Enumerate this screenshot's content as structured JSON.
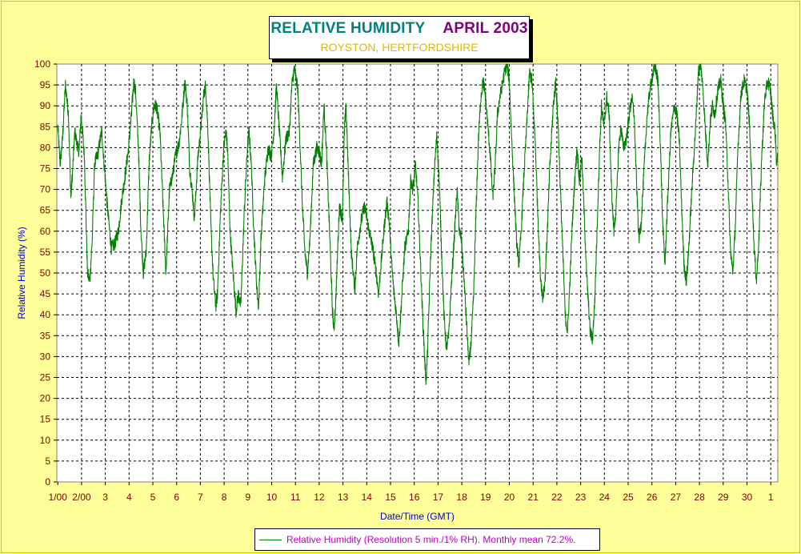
{
  "chart_data": {
    "type": "line",
    "title_left": "RELATIVE HUMIDITY",
    "title_right": "APRIL 2003",
    "subtitle": "ROYSTON, HERTFORDSHIRE",
    "xlabel": "Date/Time (GMT)",
    "ylabel": "Relative Humidity (%)",
    "ylim": [
      0,
      100
    ],
    "yticks": [
      0,
      5,
      10,
      15,
      20,
      25,
      30,
      35,
      40,
      45,
      50,
      55,
      60,
      65,
      70,
      75,
      80,
      85,
      90,
      95,
      100
    ],
    "xlim": [
      1.0,
      31.3
    ],
    "xtick_labels": [
      "1/00",
      "2/00",
      "3",
      "4",
      "5",
      "6",
      "7",
      "8",
      "9",
      "10",
      "11",
      "12",
      "13",
      "14",
      "15",
      "16",
      "17",
      "18",
      "19",
      "20",
      "21",
      "22",
      "23",
      "24",
      "25",
      "26",
      "27",
      "28",
      "29",
      "30",
      "1"
    ],
    "grid": true,
    "legend": "Relative Humidity (Resolution 5 min./1% RH). Monthly mean 72.2%.",
    "legend_position": "bottom-center",
    "colors": {
      "series": "#008000",
      "background": "#ffff99",
      "plot": "#ffffff",
      "title_left": "#008080",
      "title_right": "#800080",
      "subtitle": "#e6b800",
      "axis_label": "#0000c0",
      "legend_text": "#c000c0"
    },
    "series": [
      {
        "name": "Relative Humidity",
        "x_unit": "days from 00:00 GMT on 1 April",
        "points": [
          [
            0.0,
            85
          ],
          [
            0.1,
            76
          ],
          [
            0.2,
            82
          ],
          [
            0.32,
            95
          ],
          [
            0.45,
            88
          ],
          [
            0.55,
            68
          ],
          [
            0.62,
            74
          ],
          [
            0.72,
            84
          ],
          [
            0.8,
            81
          ],
          [
            0.9,
            79
          ],
          [
            0.98,
            88
          ],
          [
            1.12,
            78
          ],
          [
            1.25,
            50
          ],
          [
            1.35,
            48
          ],
          [
            1.45,
            58
          ],
          [
            1.55,
            76
          ],
          [
            1.7,
            79
          ],
          [
            1.85,
            84
          ],
          [
            1.95,
            76
          ],
          [
            2.1,
            65
          ],
          [
            2.25,
            56
          ],
          [
            2.4,
            57
          ],
          [
            2.55,
            60
          ],
          [
            2.7,
            68
          ],
          [
            2.85,
            74
          ],
          [
            2.98,
            80
          ],
          [
            3.1,
            88
          ],
          [
            3.2,
            96
          ],
          [
            3.28,
            93
          ],
          [
            3.4,
            79
          ],
          [
            3.5,
            60
          ],
          [
            3.6,
            50
          ],
          [
            3.72,
            55
          ],
          [
            3.85,
            77
          ],
          [
            3.95,
            85
          ],
          [
            4.05,
            90
          ],
          [
            4.15,
            90
          ],
          [
            4.3,
            84
          ],
          [
            4.45,
            63
          ],
          [
            4.55,
            50
          ],
          [
            4.7,
            70
          ],
          [
            4.85,
            74
          ],
          [
            4.95,
            78
          ],
          [
            5.1,
            81
          ],
          [
            5.2,
            86
          ],
          [
            5.35,
            96
          ],
          [
            5.45,
            90
          ],
          [
            5.55,
            75
          ],
          [
            5.65,
            70
          ],
          [
            5.75,
            63
          ],
          [
            5.9,
            78
          ],
          [
            5.98,
            82
          ],
          [
            6.15,
            93
          ],
          [
            6.22,
            95
          ],
          [
            6.32,
            84
          ],
          [
            6.45,
            60
          ],
          [
            6.55,
            48
          ],
          [
            6.65,
            42
          ],
          [
            6.72,
            45
          ],
          [
            6.85,
            65
          ],
          [
            6.98,
            80
          ],
          [
            7.08,
            84
          ],
          [
            7.15,
            79
          ],
          [
            7.25,
            60
          ],
          [
            7.4,
            48
          ],
          [
            7.5,
            41
          ],
          [
            7.6,
            45
          ],
          [
            7.7,
            42
          ],
          [
            7.85,
            65
          ],
          [
            7.98,
            80
          ],
          [
            8.05,
            84
          ],
          [
            8.15,
            75
          ],
          [
            8.25,
            60
          ],
          [
            8.38,
            46
          ],
          [
            8.45,
            42
          ],
          [
            8.55,
            58
          ],
          [
            8.7,
            72
          ],
          [
            8.85,
            80
          ],
          [
            8.98,
            78
          ],
          [
            9.1,
            84
          ],
          [
            9.2,
            95
          ],
          [
            9.3,
            86
          ],
          [
            9.45,
            73
          ],
          [
            9.6,
            82
          ],
          [
            9.75,
            84
          ],
          [
            9.85,
            95
          ],
          [
            9.95,
            99
          ],
          [
            10.1,
            94
          ],
          [
            10.2,
            80
          ],
          [
            10.3,
            65
          ],
          [
            10.4,
            55
          ],
          [
            10.5,
            50
          ],
          [
            10.6,
            57
          ],
          [
            10.75,
            76
          ],
          [
            10.9,
            80
          ],
          [
            11.0,
            79
          ],
          [
            11.1,
            76
          ],
          [
            11.2,
            90
          ],
          [
            11.3,
            80
          ],
          [
            11.45,
            58
          ],
          [
            11.55,
            42
          ],
          [
            11.62,
            36
          ],
          [
            11.7,
            44
          ],
          [
            11.85,
            66
          ],
          [
            11.98,
            63
          ],
          [
            12.05,
            82
          ],
          [
            12.12,
            91
          ],
          [
            12.22,
            75
          ],
          [
            12.35,
            55
          ],
          [
            12.5,
            46
          ],
          [
            12.6,
            56
          ],
          [
            12.75,
            62
          ],
          [
            12.9,
            66
          ],
          [
            12.98,
            64
          ],
          [
            13.1,
            60
          ],
          [
            13.25,
            56
          ],
          [
            13.4,
            50
          ],
          [
            13.5,
            45
          ],
          [
            13.6,
            52
          ],
          [
            13.75,
            62
          ],
          [
            13.85,
            67
          ],
          [
            13.95,
            62
          ],
          [
            14.05,
            52
          ],
          [
            14.15,
            45
          ],
          [
            14.25,
            40
          ],
          [
            14.35,
            33
          ],
          [
            14.45,
            42
          ],
          [
            14.6,
            56
          ],
          [
            14.75,
            60
          ],
          [
            14.85,
            72
          ],
          [
            14.95,
            70
          ],
          [
            15.05,
            76
          ],
          [
            15.15,
            68
          ],
          [
            15.25,
            54
          ],
          [
            15.35,
            40
          ],
          [
            15.45,
            28
          ],
          [
            15.5,
            24
          ],
          [
            15.55,
            30
          ],
          [
            15.7,
            56
          ],
          [
            15.85,
            75
          ],
          [
            15.95,
            83
          ],
          [
            16.05,
            72
          ],
          [
            16.15,
            55
          ],
          [
            16.25,
            40
          ],
          [
            16.35,
            32
          ],
          [
            16.45,
            35
          ],
          [
            16.55,
            46
          ],
          [
            16.7,
            60
          ],
          [
            16.8,
            70
          ],
          [
            16.9,
            60
          ],
          [
            16.98,
            58
          ],
          [
            17.1,
            48
          ],
          [
            17.2,
            38
          ],
          [
            17.3,
            28
          ],
          [
            17.4,
            34
          ],
          [
            17.5,
            45
          ],
          [
            17.6,
            65
          ],
          [
            17.7,
            82
          ],
          [
            17.8,
            92
          ],
          [
            17.9,
            96
          ],
          [
            18.0,
            92
          ],
          [
            18.1,
            85
          ],
          [
            18.2,
            78
          ],
          [
            18.3,
            68
          ],
          [
            18.4,
            75
          ],
          [
            18.5,
            88
          ],
          [
            18.6,
            92
          ],
          [
            18.7,
            95
          ],
          [
            18.8,
            98
          ],
          [
            18.9,
            100
          ],
          [
            19.0,
            96
          ],
          [
            19.1,
            82
          ],
          [
            19.2,
            70
          ],
          [
            19.3,
            58
          ],
          [
            19.4,
            52
          ],
          [
            19.5,
            60
          ],
          [
            19.6,
            72
          ],
          [
            19.7,
            82
          ],
          [
            19.85,
            98
          ],
          [
            19.95,
            96
          ],
          [
            20.1,
            80
          ],
          [
            20.2,
            64
          ],
          [
            20.3,
            50
          ],
          [
            20.4,
            44
          ],
          [
            20.5,
            48
          ],
          [
            20.6,
            60
          ],
          [
            20.7,
            75
          ],
          [
            20.85,
            90
          ],
          [
            20.95,
            96
          ],
          [
            21.05,
            86
          ],
          [
            21.15,
            70
          ],
          [
            21.25,
            55
          ],
          [
            21.35,
            40
          ],
          [
            21.45,
            36
          ],
          [
            21.55,
            48
          ],
          [
            21.65,
            62
          ],
          [
            21.75,
            72
          ],
          [
            21.85,
            80
          ],
          [
            21.95,
            72
          ],
          [
            22.05,
            78
          ],
          [
            22.15,
            64
          ],
          [
            22.25,
            50
          ],
          [
            22.4,
            36
          ],
          [
            22.5,
            34
          ],
          [
            22.6,
            44
          ],
          [
            22.7,
            62
          ],
          [
            22.8,
            80
          ],
          [
            22.88,
            90
          ],
          [
            22.98,
            85
          ],
          [
            23.1,
            92
          ],
          [
            23.2,
            88
          ],
          [
            23.3,
            70
          ],
          [
            23.4,
            60
          ],
          [
            23.5,
            66
          ],
          [
            23.6,
            80
          ],
          [
            23.7,
            85
          ],
          [
            23.8,
            80
          ],
          [
            23.92,
            82
          ],
          [
            24.05,
            88
          ],
          [
            24.15,
            92
          ],
          [
            24.25,
            88
          ],
          [
            24.35,
            72
          ],
          [
            24.45,
            58
          ],
          [
            24.55,
            62
          ],
          [
            24.68,
            76
          ],
          [
            24.8,
            88
          ],
          [
            24.92,
            94
          ],
          [
            25.05,
            98
          ],
          [
            25.15,
            99
          ],
          [
            25.25,
            96
          ],
          [
            25.35,
            82
          ],
          [
            25.45,
            62
          ],
          [
            25.55,
            52
          ],
          [
            25.65,
            66
          ],
          [
            25.8,
            84
          ],
          [
            25.95,
            90
          ],
          [
            26.05,
            88
          ],
          [
            26.15,
            82
          ],
          [
            26.25,
            66
          ],
          [
            26.35,
            52
          ],
          [
            26.45,
            48
          ],
          [
            26.55,
            56
          ],
          [
            26.7,
            72
          ],
          [
            26.85,
            86
          ],
          [
            26.95,
            98
          ],
          [
            27.05,
            100
          ],
          [
            27.15,
            94
          ],
          [
            27.25,
            84
          ],
          [
            27.35,
            76
          ],
          [
            27.45,
            86
          ],
          [
            27.55,
            90
          ],
          [
            27.65,
            88
          ],
          [
            27.78,
            94
          ],
          [
            27.9,
            96
          ],
          [
            28.0,
            90
          ],
          [
            28.1,
            86
          ],
          [
            28.2,
            72
          ],
          [
            28.3,
            56
          ],
          [
            28.4,
            50
          ],
          [
            28.5,
            60
          ],
          [
            28.62,
            80
          ],
          [
            28.75,
            93
          ],
          [
            28.88,
            96
          ],
          [
            29.0,
            94
          ],
          [
            29.1,
            86
          ],
          [
            29.2,
            72
          ],
          [
            29.3,
            56
          ],
          [
            29.4,
            48
          ],
          [
            29.5,
            58
          ],
          [
            29.62,
            78
          ],
          [
            29.75,
            92
          ],
          [
            29.88,
            96
          ],
          [
            29.98,
            94
          ],
          [
            30.08,
            88
          ],
          [
            30.18,
            84
          ],
          [
            30.25,
            76
          ],
          [
            30.3,
            78
          ]
        ]
      }
    ]
  }
}
